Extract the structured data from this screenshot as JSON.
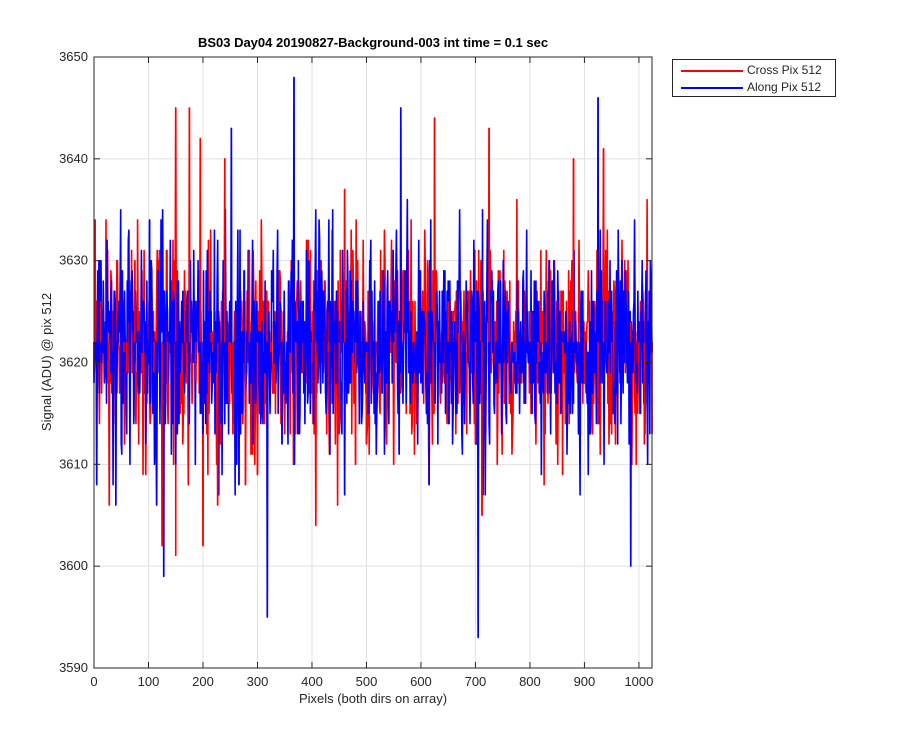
{
  "chart_data": {
    "type": "line",
    "title": "BS03 Day04 20190827-Background-003 int time = 0.1 sec",
    "xlabel": "Pixels (both dirs on array)",
    "ylabel": "Signal (ADU) @ pix 512",
    "xlim": [
      0,
      1024
    ],
    "ylim": [
      3590,
      3650
    ],
    "xticks": [
      0,
      100,
      200,
      300,
      400,
      500,
      600,
      700,
      800,
      900,
      1000
    ],
    "yticks": [
      3590,
      3600,
      3610,
      3620,
      3630,
      3640,
      3650
    ],
    "grid": true,
    "legend_position": "outside top-right",
    "series": [
      {
        "name": "Cross Pix 512",
        "color": "#ff0000",
        "mean": 3622,
        "sampled_points": [
          [
            0,
            3619
          ],
          [
            2,
            3634
          ],
          [
            12,
            3626
          ],
          [
            27,
            3620
          ],
          [
            28,
            3606
          ],
          [
            55,
            3621
          ],
          [
            60,
            3619
          ],
          [
            75,
            3630
          ],
          [
            95,
            3609
          ],
          [
            110,
            3619
          ],
          [
            125,
            3602
          ],
          [
            135,
            3616
          ],
          [
            150,
            3601
          ],
          [
            150,
            3645
          ],
          [
            170,
            3618
          ],
          [
            175,
            3645
          ],
          [
            187,
            3618
          ],
          [
            195,
            3642
          ],
          [
            200,
            3602
          ],
          [
            215,
            3623
          ],
          [
            227,
            3606
          ],
          [
            240,
            3640
          ],
          [
            248,
            3616
          ],
          [
            255,
            3613
          ],
          [
            278,
            3608
          ],
          [
            285,
            3631
          ],
          [
            300,
            3609
          ],
          [
            325,
            3621
          ],
          [
            344,
            3625
          ],
          [
            370,
            3613
          ],
          [
            400,
            3620
          ],
          [
            407,
            3604
          ],
          [
            430,
            3621
          ],
          [
            450,
            3613
          ],
          [
            460,
            3637
          ],
          [
            480,
            3610
          ],
          [
            500,
            3612
          ],
          [
            520,
            3622
          ],
          [
            550,
            3610
          ],
          [
            585,
            3626
          ],
          [
            615,
            3608
          ],
          [
            625,
            3644
          ],
          [
            650,
            3626
          ],
          [
            680,
            3622
          ],
          [
            700,
            3612
          ],
          [
            712,
            3605
          ],
          [
            725,
            3643
          ],
          [
            750,
            3621
          ],
          [
            775,
            3622
          ],
          [
            800,
            3625
          ],
          [
            815,
            3620
          ],
          [
            830,
            3631
          ],
          [
            860,
            3609
          ],
          [
            880,
            3640
          ],
          [
            900,
            3618
          ],
          [
            925,
            3614
          ],
          [
            935,
            3641
          ],
          [
            950,
            3613
          ],
          [
            985,
            3624
          ],
          [
            1000,
            3620
          ],
          [
            1010,
            3612
          ],
          [
            1024,
            3613
          ]
        ]
      },
      {
        "name": "Along Pix 512",
        "color": "#0000ff",
        "mean": 3622,
        "sampled_points": [
          [
            0,
            3618
          ],
          [
            5,
            3608
          ],
          [
            18,
            3622
          ],
          [
            40,
            3606
          ],
          [
            50,
            3612
          ],
          [
            80,
            3620
          ],
          [
            95,
            3612
          ],
          [
            102,
            3634
          ],
          [
            115,
            3606
          ],
          [
            120,
            3624
          ],
          [
            128,
            3599
          ],
          [
            138,
            3623
          ],
          [
            150,
            3610
          ],
          [
            165,
            3618
          ],
          [
            200,
            3613
          ],
          [
            225,
            3620
          ],
          [
            250,
            3623
          ],
          [
            252,
            3643
          ],
          [
            266,
            3608
          ],
          [
            280,
            3619
          ],
          [
            318,
            3595
          ],
          [
            330,
            3620
          ],
          [
            345,
            3612
          ],
          [
            350,
            3622
          ],
          [
            360,
            3621
          ],
          [
            367,
            3648
          ],
          [
            377,
            3613
          ],
          [
            400,
            3622
          ],
          [
            425,
            3617
          ],
          [
            440,
            3624
          ],
          [
            460,
            3607
          ],
          [
            500,
            3621
          ],
          [
            520,
            3617
          ],
          [
            550,
            3624
          ],
          [
            560,
            3611
          ],
          [
            563,
            3645
          ],
          [
            580,
            3620
          ],
          [
            600,
            3618
          ],
          [
            615,
            3608
          ],
          [
            640,
            3623
          ],
          [
            660,
            3621
          ],
          [
            700,
            3625
          ],
          [
            705,
            3593
          ],
          [
            720,
            3620
          ],
          [
            750,
            3621
          ],
          [
            790,
            3621
          ],
          [
            820,
            3620
          ],
          [
            850,
            3616
          ],
          [
            870,
            3620
          ],
          [
            890,
            3618
          ],
          [
            920,
            3622
          ],
          [
            925,
            3646
          ],
          [
            945,
            3621
          ],
          [
            968,
            3620
          ],
          [
            985,
            3600
          ],
          [
            1000,
            3624
          ],
          [
            1015,
            3616
          ],
          [
            1024,
            3621
          ]
        ]
      }
    ]
  }
}
